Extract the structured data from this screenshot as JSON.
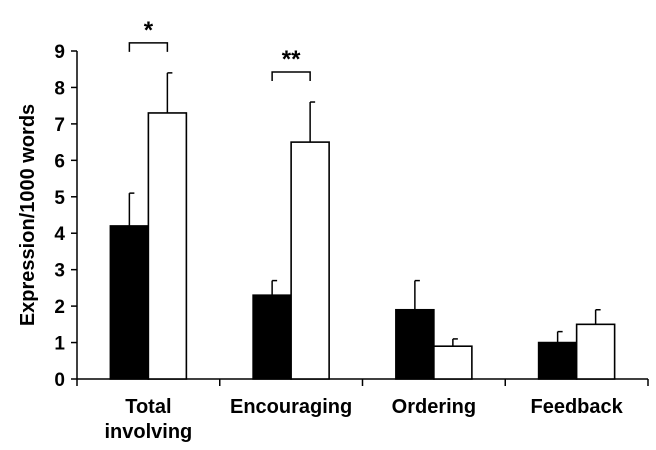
{
  "chart_data": {
    "type": "bar",
    "ylabel": "Expression/1000 words",
    "ylim": [
      0,
      9
    ],
    "yticks": [
      "0",
      "1",
      "2",
      "3",
      "4",
      "5",
      "6",
      "7",
      "8",
      "9"
    ],
    "categories": [
      [
        "Total",
        "involving"
      ],
      [
        "Encouraging"
      ],
      [
        "Ordering"
      ],
      [
        "Feedback"
      ]
    ],
    "series": [
      {
        "fill": "#000000",
        "values": [
          4.2,
          2.3,
          1.9,
          1.0
        ],
        "errors": [
          0.9,
          0.4,
          0.8,
          0.3
        ]
      },
      {
        "fill": "#ffffff",
        "values": [
          7.3,
          6.5,
          0.9,
          1.5
        ],
        "errors": [
          1.1,
          1.1,
          0.2,
          0.4
        ]
      }
    ],
    "significance": [
      {
        "category_index": 0,
        "label": "*"
      },
      {
        "category_index": 1,
        "label": "**"
      }
    ],
    "grid": false,
    "legend": "none"
  }
}
